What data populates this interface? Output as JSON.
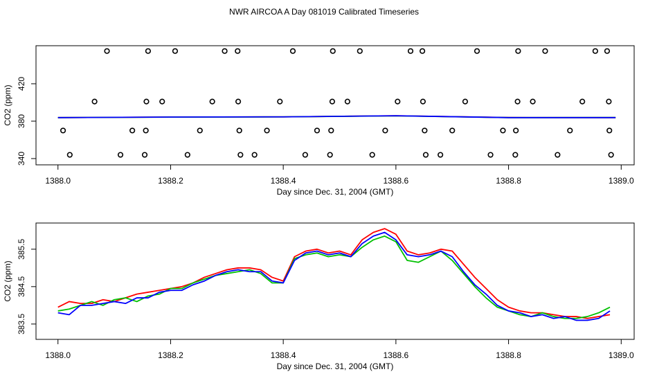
{
  "title": "NWR AIRCOA A  Day 081019  Calibrated Timeseries",
  "chart_data": [
    {
      "type": "scatter",
      "x_label": "Day since Dec. 31, 2004 (GMT)",
      "y_label": "CO2 (ppm)",
      "xlim": [
        1387.961,
        1389.023
      ],
      "ylim": [
        333.3,
        460.7
      ],
      "xticks": [
        {
          "value": 1388,
          "label": "1388.0"
        },
        1388.2,
        1388.4,
        1388.6,
        1388.8,
        {
          "value": 1389,
          "label": "1389.0"
        }
      ],
      "yticks": [
        340,
        380,
        420
      ],
      "series": [
        {
          "style": "points",
          "color": "#000000",
          "x": [
            1388.087,
            1388.16,
            1388.208,
            1388.296,
            1388.319,
            1388.417,
            1388.488,
            1388.536,
            1388.626,
            1388.647,
            1388.744,
            1388.817,
            1388.865,
            1388.954,
            1388.975,
            1388.065,
            1388.157,
            1388.185,
            1388.274,
            1388.32,
            1388.394,
            1388.487,
            1388.514,
            1388.603,
            1388.648,
            1388.723,
            1388.816,
            1388.843,
            1388.931,
            1388.978,
            1388.009,
            1388.132,
            1388.156,
            1388.252,
            1388.322,
            1388.371,
            1388.46,
            1388.485,
            1388.581,
            1388.651,
            1388.7,
            1388.79,
            1388.813,
            1388.909,
            1388.979,
            1388.021,
            1388.111,
            1388.154,
            1388.23,
            1388.324,
            1388.349,
            1388.439,
            1388.483,
            1388.558,
            1388.653,
            1388.679,
            1388.768,
            1388.812,
            1388.887,
            1388.982
          ],
          "values": [
            455,
            455,
            455,
            455,
            455,
            455,
            455,
            455,
            455,
            455,
            455,
            455,
            455,
            455,
            455,
            401,
            401,
            401,
            401,
            401,
            401,
            401,
            401,
            401,
            401,
            401,
            401,
            401,
            401,
            401,
            370,
            370,
            370,
            370,
            370,
            370,
            370,
            370,
            370,
            370,
            370,
            370,
            370,
            370,
            370,
            344,
            344,
            344,
            344,
            344,
            344,
            344,
            344,
            344,
            344,
            344,
            344,
            344,
            344,
            344
          ]
        },
        {
          "style": "line",
          "color": "#ff0000",
          "x": [
            1388.0,
            1388.2,
            1388.4,
            1388.6,
            1388.8,
            1388.99
          ],
          "values": [
            383.8,
            384.4,
            384.6,
            385.8,
            383.9,
            383.8
          ]
        },
        {
          "style": "line",
          "color": "#00c000",
          "x": [
            1388.0,
            1388.2,
            1388.4,
            1388.6,
            1388.8,
            1388.99
          ],
          "values": [
            383.8,
            384.3,
            384.6,
            385.7,
            383.8,
            383.9
          ]
        },
        {
          "style": "line",
          "color": "#0000ff",
          "x": [
            1388.0,
            1388.2,
            1388.4,
            1388.6,
            1388.8,
            1388.99
          ],
          "values": [
            383.8,
            384.4,
            384.6,
            385.8,
            383.8,
            383.8
          ]
        }
      ]
    },
    {
      "type": "line",
      "x_label": "Day since Dec. 31, 2004 (GMT)",
      "y_label": "CO2 (ppm)",
      "xlim": [
        1387.961,
        1389.023
      ],
      "ylim": [
        383.09,
        386.2
      ],
      "xticks": [
        {
          "value": 1388,
          "label": "1388.0"
        },
        1388.2,
        1388.4,
        1388.6,
        1388.8,
        {
          "value": 1389,
          "label": "1389.0"
        }
      ],
      "yticks": [
        383.5,
        384.5,
        385.5
      ],
      "series": [
        {
          "style": "line",
          "color": "#ff0000",
          "x": [
            1388.0,
            1388.02,
            1388.04,
            1388.06,
            1388.08,
            1388.1,
            1388.12,
            1388.14,
            1388.16,
            1388.18,
            1388.2,
            1388.22,
            1388.24,
            1388.26,
            1388.28,
            1388.3,
            1388.32,
            1388.34,
            1388.36,
            1388.38,
            1388.4,
            1388.42,
            1388.44,
            1388.46,
            1388.48,
            1388.5,
            1388.52,
            1388.54,
            1388.56,
            1388.58,
            1388.6,
            1388.62,
            1388.64,
            1388.66,
            1388.68,
            1388.7,
            1388.72,
            1388.74,
            1388.76,
            1388.78,
            1388.8,
            1388.82,
            1388.84,
            1388.86,
            1388.88,
            1388.9,
            1388.92,
            1388.94,
            1388.96,
            1388.98
          ],
          "values": [
            383.95,
            384.1,
            384.05,
            384.05,
            384.15,
            384.1,
            384.2,
            384.3,
            384.35,
            384.4,
            384.45,
            384.5,
            384.6,
            384.75,
            384.85,
            384.95,
            385.0,
            385.0,
            384.95,
            384.75,
            384.65,
            385.3,
            385.45,
            385.5,
            385.4,
            385.45,
            385.35,
            385.75,
            385.95,
            386.05,
            385.9,
            385.45,
            385.35,
            385.4,
            385.5,
            385.45,
            385.1,
            384.75,
            384.45,
            384.15,
            383.95,
            383.85,
            383.8,
            383.8,
            383.75,
            383.7,
            383.7,
            383.65,
            383.7,
            383.75
          ]
        },
        {
          "style": "line",
          "color": "#00c000",
          "x": [
            1388.0,
            1388.02,
            1388.04,
            1388.06,
            1388.08,
            1388.1,
            1388.12,
            1388.14,
            1388.16,
            1388.18,
            1388.2,
            1388.22,
            1388.24,
            1388.26,
            1388.28,
            1388.3,
            1388.32,
            1388.34,
            1388.36,
            1388.38,
            1388.4,
            1388.42,
            1388.44,
            1388.46,
            1388.48,
            1388.5,
            1388.52,
            1388.54,
            1388.56,
            1388.58,
            1388.6,
            1388.62,
            1388.64,
            1388.66,
            1388.68,
            1388.7,
            1388.72,
            1388.74,
            1388.76,
            1388.78,
            1388.8,
            1388.82,
            1388.84,
            1388.86,
            1388.88,
            1388.9,
            1388.92,
            1388.94,
            1388.96,
            1388.98
          ],
          "values": [
            383.85,
            383.9,
            384.0,
            384.1,
            384.0,
            384.15,
            384.2,
            384.1,
            384.25,
            384.3,
            384.45,
            384.45,
            384.6,
            384.7,
            384.8,
            384.85,
            384.9,
            384.95,
            384.85,
            384.6,
            384.6,
            385.25,
            385.35,
            385.4,
            385.3,
            385.35,
            385.3,
            385.55,
            385.75,
            385.85,
            385.7,
            385.2,
            385.15,
            385.3,
            385.45,
            385.2,
            384.85,
            384.5,
            384.2,
            383.95,
            383.85,
            383.75,
            383.7,
            383.8,
            383.7,
            383.65,
            383.65,
            383.7,
            383.8,
            383.95
          ]
        },
        {
          "style": "line",
          "color": "#0000ff",
          "x": [
            1388.0,
            1388.02,
            1388.04,
            1388.06,
            1388.08,
            1388.1,
            1388.12,
            1388.14,
            1388.16,
            1388.18,
            1388.2,
            1388.22,
            1388.24,
            1388.26,
            1388.28,
            1388.3,
            1388.32,
            1388.34,
            1388.36,
            1388.38,
            1388.4,
            1388.42,
            1388.44,
            1388.46,
            1388.48,
            1388.5,
            1388.52,
            1388.54,
            1388.56,
            1388.58,
            1388.6,
            1388.62,
            1388.64,
            1388.66,
            1388.68,
            1388.7,
            1388.72,
            1388.74,
            1388.76,
            1388.78,
            1388.8,
            1388.82,
            1388.84,
            1388.86,
            1388.88,
            1388.9,
            1388.92,
            1388.94,
            1388.96,
            1388.98
          ],
          "values": [
            383.8,
            383.75,
            384.0,
            384.0,
            384.05,
            384.1,
            384.05,
            384.2,
            384.2,
            384.35,
            384.4,
            384.4,
            384.55,
            384.65,
            384.8,
            384.9,
            384.95,
            384.9,
            384.9,
            384.65,
            384.6,
            385.2,
            385.4,
            385.45,
            385.35,
            385.4,
            385.3,
            385.65,
            385.85,
            385.95,
            385.75,
            385.35,
            385.3,
            385.35,
            385.45,
            385.3,
            384.9,
            384.55,
            384.3,
            384.0,
            383.85,
            383.8,
            383.7,
            383.75,
            383.65,
            383.7,
            383.6,
            383.6,
            383.65,
            383.85
          ]
        }
      ]
    }
  ]
}
